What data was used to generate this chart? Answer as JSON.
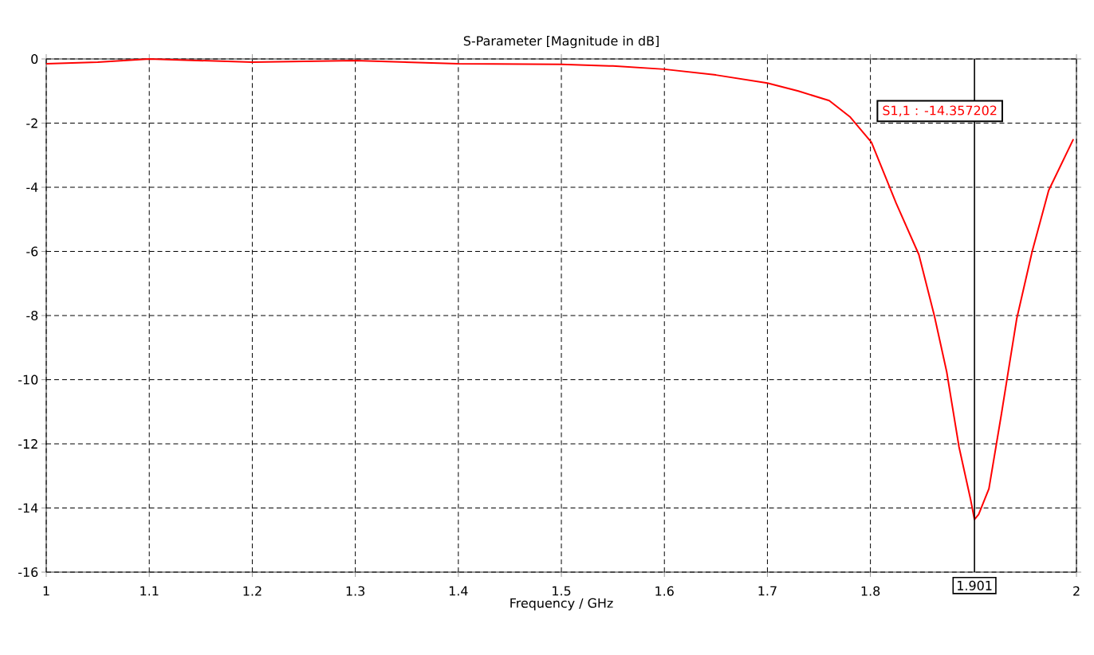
{
  "chart_data": {
    "type": "line",
    "title": "S-Parameter [Magnitude in dB]",
    "xlabel": "Frequency / GHz",
    "series": [
      {
        "color": "#ff0000",
        "x": [
          1.0,
          1.05,
          1.1,
          1.15,
          1.2,
          1.3,
          1.4,
          1.5,
          1.55,
          1.6,
          1.65,
          1.7,
          1.73,
          1.76,
          1.78,
          1.801,
          1.825,
          1.847,
          1.862,
          1.874,
          1.886,
          1.897,
          1.901,
          1.905,
          1.915,
          1.927,
          1.942,
          1.957,
          1.973,
          1.997
        ],
        "values": [
          -0.15,
          -0.1,
          0.0,
          -0.05,
          -0.1,
          -0.05,
          -0.15,
          -0.17,
          -0.22,
          -0.32,
          -0.5,
          -0.75,
          -1.0,
          -1.3,
          -1.8,
          -2.6,
          -4.5,
          -6.1,
          -8.0,
          -9.75,
          -12.1,
          -13.7,
          -14.36,
          -14.2,
          -13.4,
          -11.1,
          -8.1,
          -6.0,
          -4.1,
          -2.5
        ]
      }
    ],
    "xlim": [
      1,
      2
    ],
    "ylim": [
      -16,
      0
    ],
    "xticks": [
      1,
      1.1,
      1.2,
      1.3,
      1.4,
      1.5,
      1.6,
      1.7,
      1.8,
      2
    ],
    "yticks": [
      -16,
      -14,
      -12,
      -10,
      -8,
      -6,
      -4,
      -2,
      0
    ],
    "grid": true,
    "line_style": "solid",
    "marker": "none",
    "ref_lines": [
      {
        "axis": "x",
        "value": 1.901,
        "label": "1.901",
        "color": "#000000"
      }
    ],
    "annotations": [
      "S1,1 : -14.357202"
    ]
  }
}
